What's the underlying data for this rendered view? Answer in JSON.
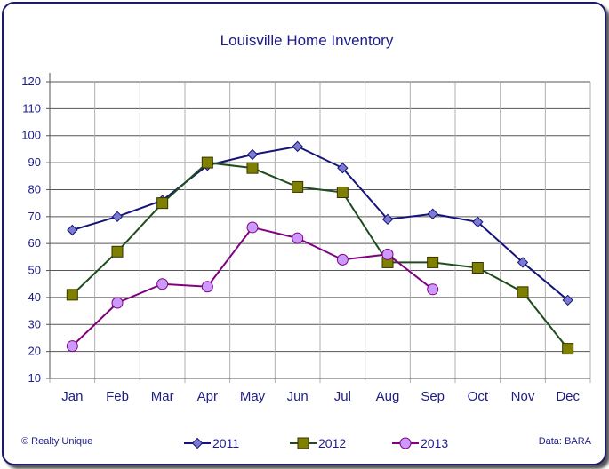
{
  "chart_data": {
    "type": "line",
    "title": "Louisville Home Inventory",
    "categories": [
      "Jan",
      "Feb",
      "Mar",
      "Apr",
      "May",
      "Jun",
      "Jul",
      "Aug",
      "Sep",
      "Oct",
      "Nov",
      "Dec"
    ],
    "ylim": [
      10,
      120
    ],
    "yticks": [
      10,
      20,
      30,
      40,
      50,
      60,
      70,
      80,
      90,
      100,
      110,
      120
    ],
    "grid": true,
    "legend_position": "bottom",
    "series": [
      {
        "name": "2011",
        "color": "#14147a",
        "marker": "diamond",
        "marker_fill": "#7b7bd1",
        "values": [
          65,
          70,
          76,
          89,
          93,
          96,
          88,
          69,
          71,
          68,
          53,
          39
        ]
      },
      {
        "name": "2012",
        "color": "#1e4d1e",
        "marker": "square",
        "marker_fill": "#808000",
        "values": [
          41,
          57,
          75,
          90,
          88,
          81,
          79,
          53,
          53,
          51,
          42,
          21
        ]
      },
      {
        "name": "2013",
        "color": "#800080",
        "marker": "circle",
        "marker_fill": "#cc99ff",
        "values": [
          22,
          38,
          45,
          44,
          66,
          62,
          54,
          56,
          43,
          null,
          null,
          null
        ]
      }
    ],
    "footer_left": "© Realty Unique",
    "footer_right": "Data: BARA"
  }
}
